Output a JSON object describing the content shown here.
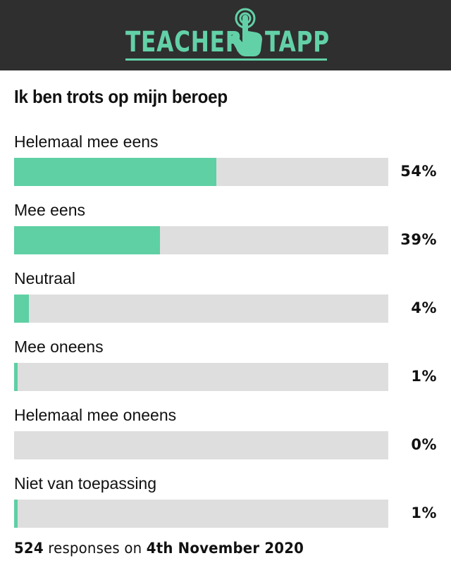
{
  "header": {
    "brand_left": "TEACHER",
    "brand_right": "TAPP",
    "brand_color": "#63d1a8",
    "background_color": "#2f2f2f",
    "icon": "tap-hand-icon"
  },
  "chart_data": {
    "type": "bar",
    "orientation": "horizontal",
    "title": "Ik ben trots op mijn beroep",
    "categories": [
      "Helemaal mee eens",
      "Mee eens",
      "Neutraal",
      "Mee oneens",
      "Helemaal mee oneens",
      "Niet van toepassing"
    ],
    "values": [
      54,
      39,
      4,
      1,
      0,
      1
    ],
    "value_labels": [
      "54%",
      "39%",
      "4%",
      "1%",
      "0%",
      "1%"
    ],
    "xlim": [
      0,
      100
    ],
    "bar_color": "#5ed0a4",
    "track_color": "#dedede",
    "grid": false
  },
  "footer": {
    "count": "524",
    "mid_text": "responses on",
    "date": "4th November 2020"
  }
}
